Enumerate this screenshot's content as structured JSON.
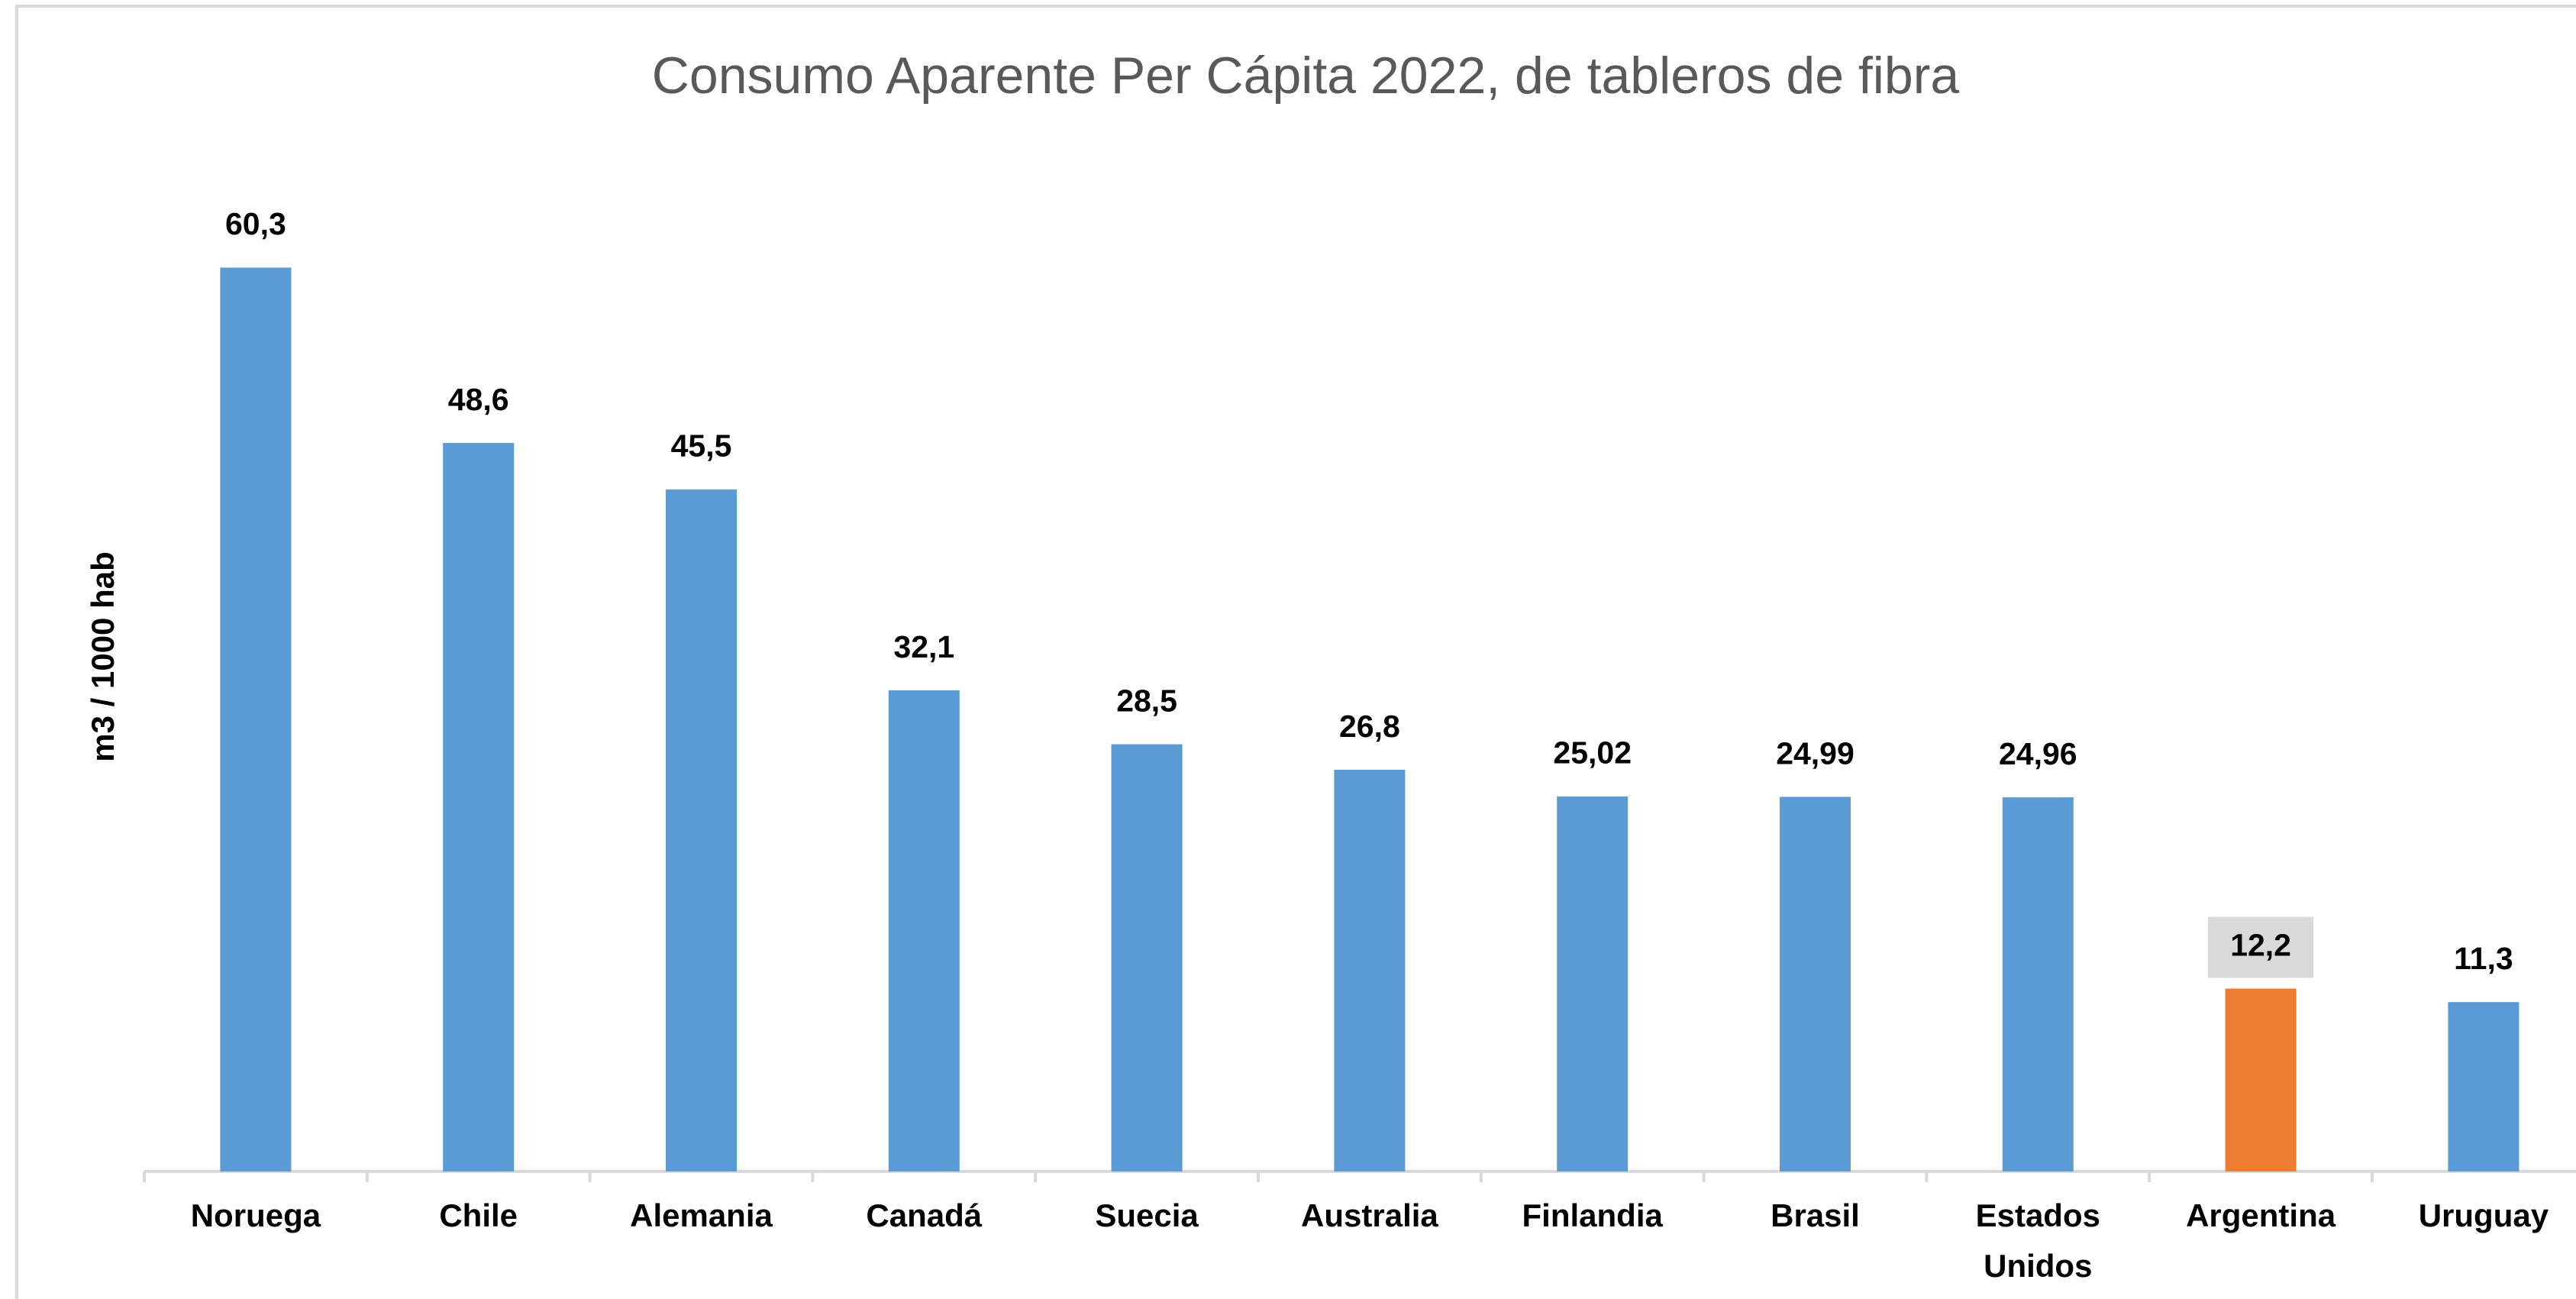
{
  "chart_data": {
    "type": "bar",
    "title": "Consumo Aparente Per Cápita 2022, de tableros de fibra",
    "y_label": "m3 / 1000 hab",
    "categories": [
      "Noruega",
      "Chile",
      "Alemania",
      "Canadá",
      "Suecia",
      "Australia",
      "Finlandia",
      "Brasil",
      "Estados Unidos",
      "Argentina",
      "Uruguay"
    ],
    "values": [
      60.3,
      48.6,
      45.5,
      32.1,
      28.5,
      26.8,
      25.02,
      24.99,
      24.96,
      12.2,
      11.3
    ],
    "value_labels": [
      "60,3",
      "48,6",
      "45,5",
      "32,1",
      "28,5",
      "26,8",
      "25,02",
      "24,99",
      "24,96",
      "12,2",
      "11,3"
    ],
    "color": "#5b9bd5",
    "colors": [
      "#5b9bd5",
      "#5b9bd5",
      "#5b9bd5",
      "#5b9bd5",
      "#5b9bd5",
      "#5b9bd5",
      "#5b9bd5",
      "#5b9bd5",
      "#5b9bd5",
      "#ed7d31",
      "#5b9bd5"
    ],
    "ylim": [
      0,
      70
    ],
    "grid": false
  }
}
